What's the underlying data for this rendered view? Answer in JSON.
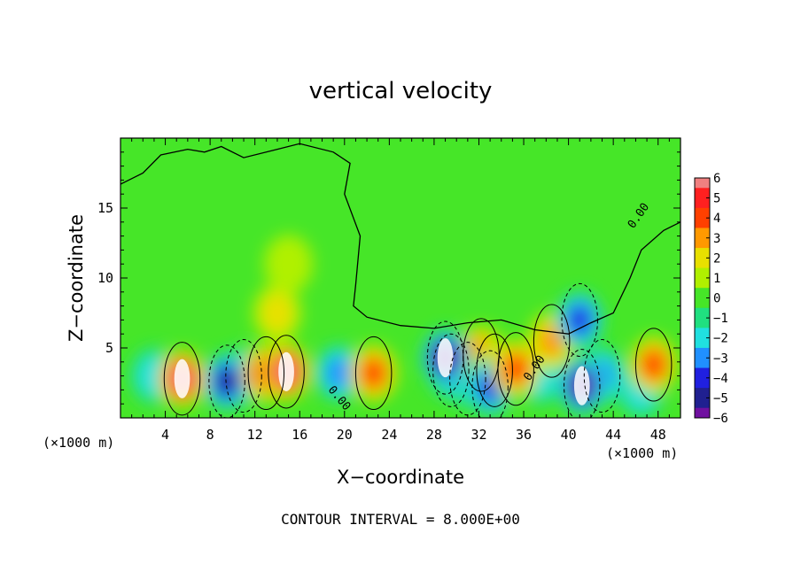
{
  "chart_data": {
    "type": "heatmap",
    "title": "vertical velocity",
    "xlabel": "X−coordinate",
    "ylabel": "Z−coordinate",
    "x_unit_left": "(×1000 m)",
    "x_unit_right": "(×1000 m)",
    "xlim": [
      0,
      50
    ],
    "ylim": [
      0,
      20
    ],
    "x_ticks": [
      4,
      8,
      12,
      16,
      20,
      24,
      28,
      32,
      36,
      40,
      44,
      48
    ],
    "y_ticks": [
      5,
      10,
      15
    ],
    "colorbar": {
      "levels": [
        6,
        5,
        4,
        3,
        2,
        1,
        0,
        -1,
        -2,
        -3,
        -4,
        -5,
        -6
      ],
      "labels": [
        "6",
        "5",
        "4",
        "3",
        "2",
        "1",
        "0",
        "−1",
        "−2",
        "−3",
        "−4",
        "−5",
        "−6"
      ],
      "colors": [
        "#f08080",
        "#ff2020",
        "#ff4000",
        "#ff9900",
        "#e8e000",
        "#b0f000",
        "#46e628",
        "#20e080",
        "#20e0e0",
        "#2090ff",
        "#2020e0",
        "#202090",
        "#7010a0"
      ]
    },
    "features": [
      {
        "x": 3,
        "z": 3,
        "w": -2
      },
      {
        "x": 5.5,
        "z": 2.8,
        "w": 5.5
      },
      {
        "x": 9.5,
        "z": 2.6,
        "w": -5
      },
      {
        "x": 11,
        "z": 3,
        "w": -4
      },
      {
        "x": 13,
        "z": 3.2,
        "w": 5
      },
      {
        "x": 14.8,
        "z": 3.3,
        "w": 6
      },
      {
        "x": 14,
        "z": 7.5,
        "w": 2
      },
      {
        "x": 15,
        "z": 11,
        "w": 1
      },
      {
        "x": 22.6,
        "z": 3.2,
        "w": 4
      },
      {
        "x": 19.5,
        "z": 3.2,
        "w": -2.5
      },
      {
        "x": 29,
        "z": 4.3,
        "w": -5.5
      },
      {
        "x": 29.5,
        "z": 3.4,
        "w": -4
      },
      {
        "x": 31,
        "z": 2.8,
        "w": -3
      },
      {
        "x": 32.2,
        "z": 4.5,
        "w": 4
      },
      {
        "x": 33.4,
        "z": 3.4,
        "w": 4
      },
      {
        "x": 33,
        "z": 2.2,
        "w": -4
      },
      {
        "x": 35.3,
        "z": 3.5,
        "w": 4
      },
      {
        "x": 37.5,
        "z": 3,
        "w": -2
      },
      {
        "x": 41,
        "z": 7,
        "w": -4
      },
      {
        "x": 41.2,
        "z": 2.3,
        "w": -5.5
      },
      {
        "x": 43,
        "z": 3,
        "w": -3
      },
      {
        "x": 47.6,
        "z": 3.8,
        "w": 3.5
      },
      {
        "x": 46.5,
        "z": 2,
        "w": -2
      },
      {
        "x": 38.5,
        "z": 5.5,
        "w": 3
      }
    ],
    "contours": [
      {
        "value": 0.0,
        "label": "0.00"
      }
    ],
    "contour_interval": "CONTOUR INTERVAL = 8.000E+00"
  }
}
